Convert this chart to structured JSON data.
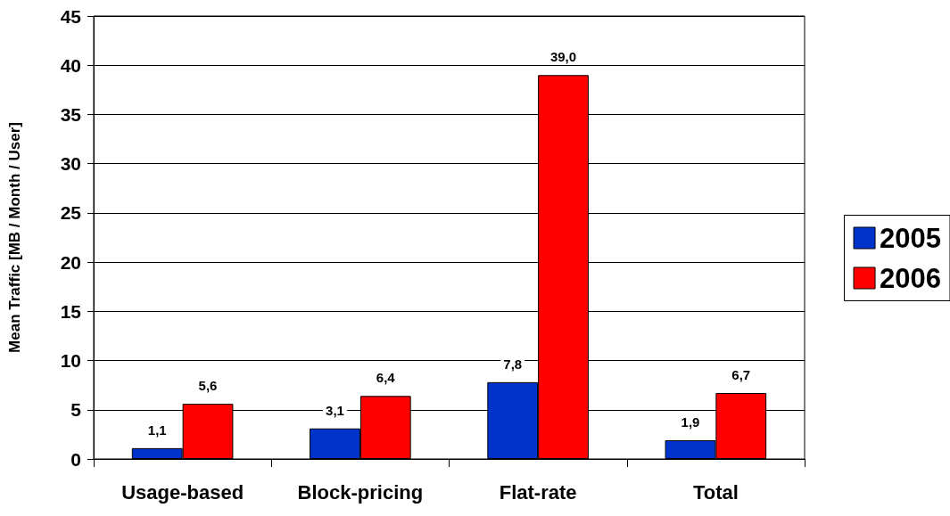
{
  "chart_data": {
    "type": "bar",
    "ylabel": "Mean Traffic [MB / Month / User]",
    "categories": [
      "Usage-based",
      "Block-pricing",
      "Flat-rate",
      "Total"
    ],
    "series": [
      {
        "name": "2005",
        "color": "#0033cc",
        "values": [
          1.1,
          3.1,
          7.8,
          1.9
        ],
        "value_labels": [
          "1,1",
          "3,1",
          "7,8",
          "1,9"
        ]
      },
      {
        "name": "2006",
        "color": "#ff0000",
        "values": [
          5.6,
          6.4,
          39.0,
          6.7
        ],
        "value_labels": [
          "5,6",
          "6,4",
          "39,0",
          "6,7"
        ]
      }
    ],
    "ylim": [
      0,
      45
    ],
    "yticks": [
      0,
      5,
      10,
      15,
      20,
      25,
      30,
      35,
      40,
      45
    ],
    "grid": "y",
    "legend": "right"
  }
}
